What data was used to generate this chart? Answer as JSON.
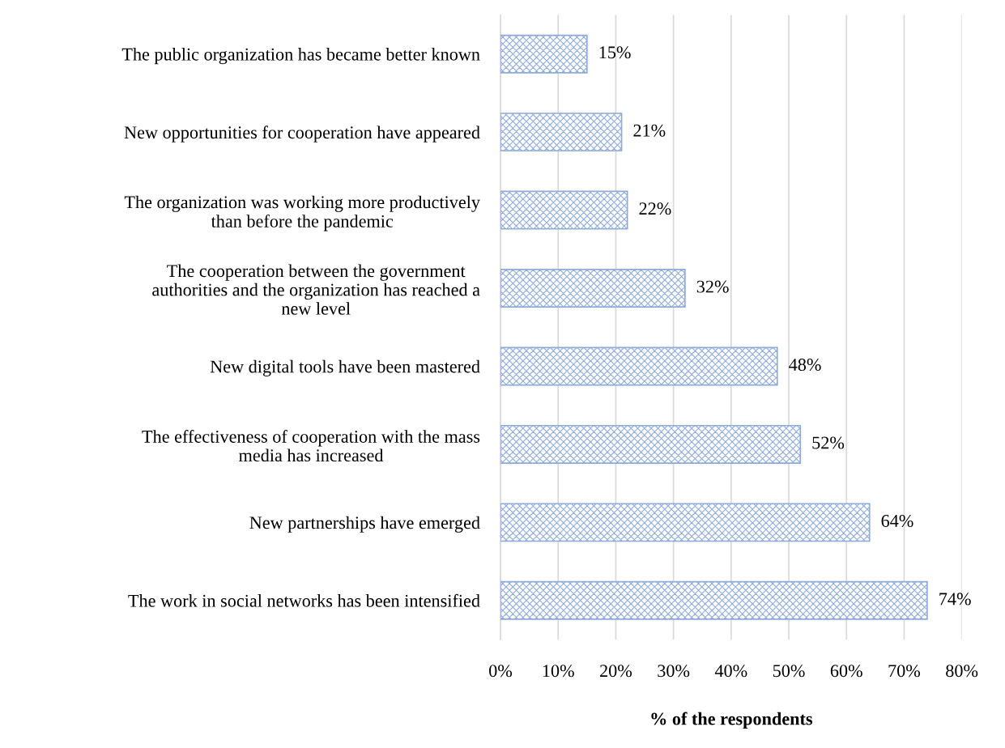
{
  "chart_data": {
    "type": "bar",
    "orientation": "horizontal",
    "categories": [
      "The public organization has became better known",
      "New opportunities for cooperation have appeared",
      "The organization was working more productively\nthan before the pandemic",
      "The cooperation between the government\nauthorities and the organization has reached a\nnew level",
      "New digital tools have been mastered",
      "The effectiveness of cooperation with the mass\nmedia has increased",
      "New partnerships have emerged",
      "The work in social networks has been intensified"
    ],
    "values": [
      15,
      21,
      22,
      32,
      48,
      52,
      64,
      74
    ],
    "value_labels": [
      "15%",
      "21%",
      "22%",
      "32%",
      "48%",
      "52%",
      "64%",
      "74%"
    ],
    "color": "#8eaadb",
    "xlabel": "% of the respondents",
    "xlim": [
      0,
      80
    ],
    "xticks": [
      {
        "value": 0,
        "label": "0%"
      },
      {
        "value": 10,
        "label": "10%"
      },
      {
        "value": 20,
        "label": "20%"
      },
      {
        "value": 30,
        "label": "30%"
      },
      {
        "value": 40,
        "label": "40%"
      },
      {
        "value": 50,
        "label": "50%"
      },
      {
        "value": 60,
        "label": "60%"
      },
      {
        "value": 70,
        "label": "70%"
      },
      {
        "value": 80,
        "label": "80%"
      }
    ],
    "grid": "x"
  }
}
